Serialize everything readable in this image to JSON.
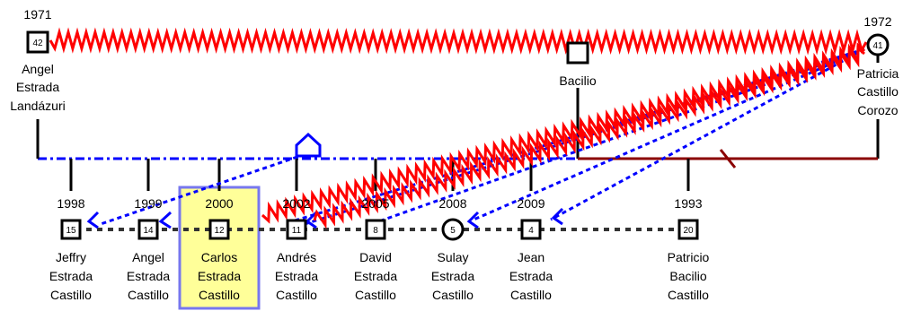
{
  "people": [
    {
      "id": "angel-sr",
      "year": "1971",
      "age": "42",
      "sex": "male",
      "name": [
        "Angel",
        "Estrada",
        "Landázuri"
      ]
    },
    {
      "id": "patricia",
      "year": "1972",
      "age": "41",
      "sex": "female",
      "name": [
        "Patricia",
        "Castillo",
        "Corozo"
      ]
    },
    {
      "id": "bacilio",
      "year": "",
      "age": "",
      "sex": "male",
      "name": [
        "Bacilio"
      ]
    },
    {
      "id": "jeffry",
      "year": "1998",
      "age": "15",
      "sex": "male",
      "name": [
        "Jeffry",
        "Estrada",
        "Castillo"
      ]
    },
    {
      "id": "angel-jr",
      "year": "1999",
      "age": "14",
      "sex": "male",
      "name": [
        "Angel",
        "Estrada",
        "Castillo"
      ]
    },
    {
      "id": "carlos",
      "year": "2000",
      "age": "12",
      "sex": "male",
      "name": [
        "Carlos",
        "Estrada",
        "Castillo"
      ],
      "highlight": true
    },
    {
      "id": "andres",
      "year": "2002",
      "age": "11",
      "sex": "male",
      "name": [
        "Andrés",
        "Estrada",
        "Castillo"
      ]
    },
    {
      "id": "david",
      "year": "2005",
      "age": "8",
      "sex": "male",
      "name": [
        "David",
        "Estrada",
        "Castillo"
      ]
    },
    {
      "id": "sulay",
      "year": "2008",
      "age": "5",
      "sex": "female",
      "name": [
        "Sulay",
        "Estrada",
        "Castillo"
      ]
    },
    {
      "id": "jean",
      "year": "2009",
      "age": "4",
      "sex": "male",
      "name": [
        "Jean",
        "Estrada",
        "Castillo"
      ]
    },
    {
      "id": "patricio",
      "year": "1993",
      "age": "20",
      "sex": "male",
      "name": [
        "Patricio",
        "Bacilio",
        "Castillo"
      ]
    }
  ],
  "colors": {
    "conflict": "#ff0000",
    "close_relation": "#0000ff",
    "sibling_line": "#333333",
    "separation_line": "#8b0000",
    "highlight_fill": "#ffff99",
    "highlight_border": "#7777ee",
    "line": "#000000"
  },
  "icons": {
    "household": "pentagon-house-icon",
    "male": "square-icon",
    "female": "circle-icon"
  }
}
